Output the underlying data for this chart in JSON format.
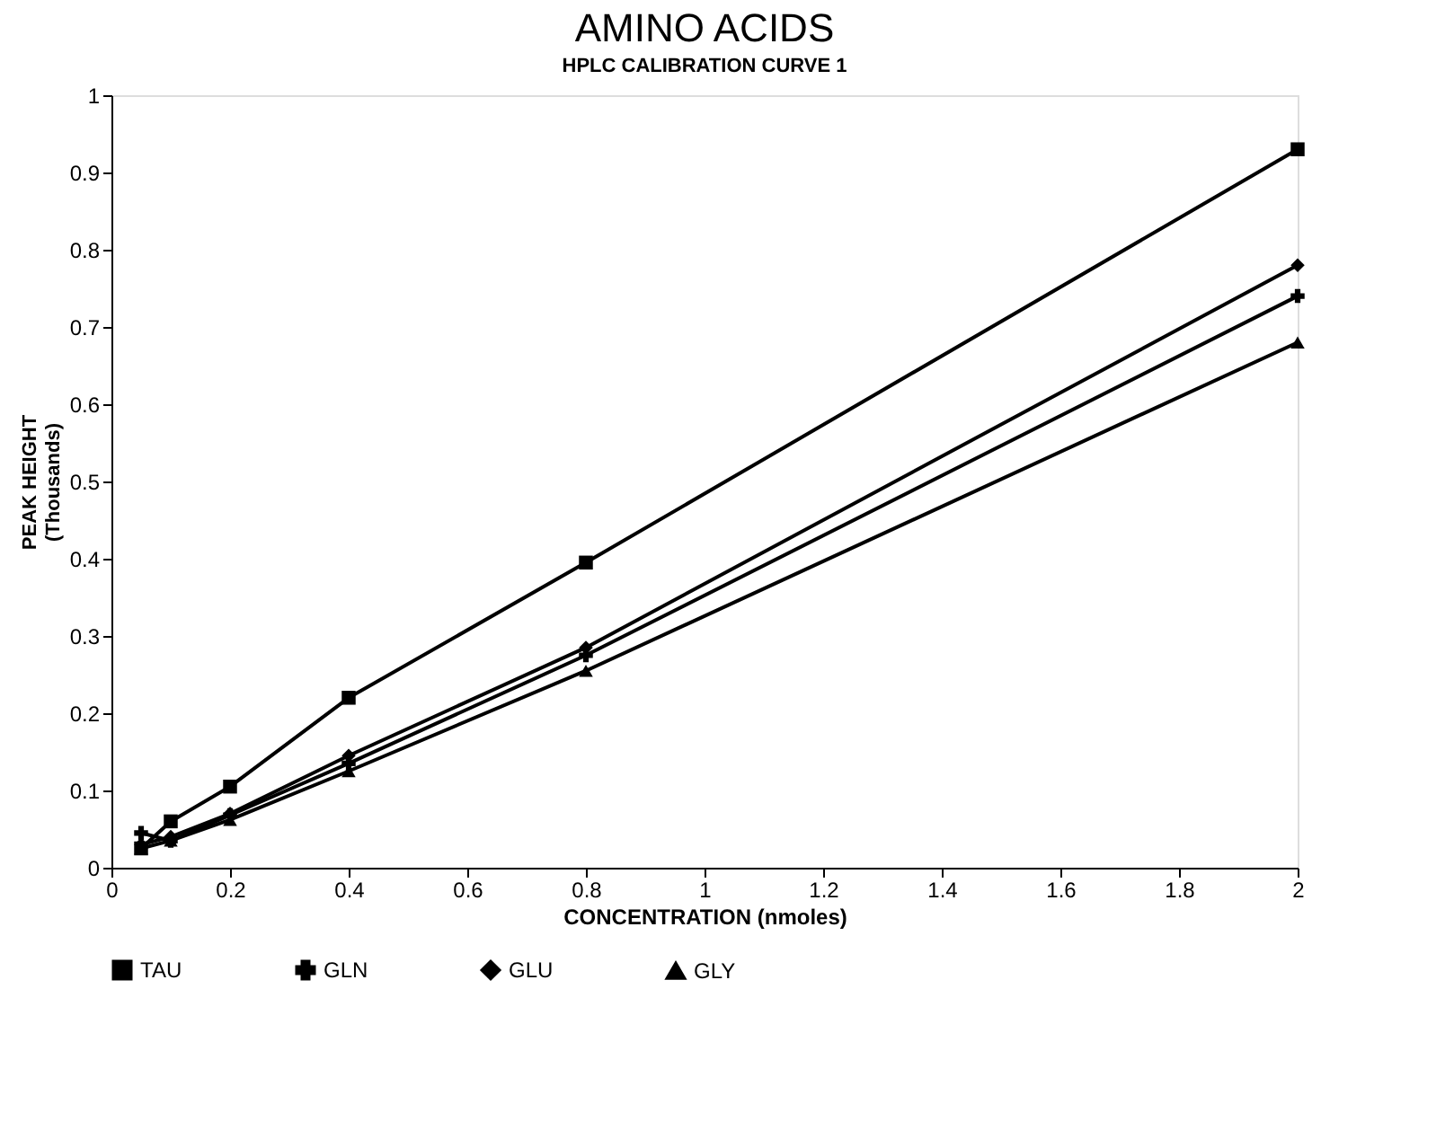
{
  "chart_data": {
    "type": "line",
    "title": "AMINO ACIDS",
    "subtitle": "HPLC CALIBRATION CURVE 1",
    "xlabel": "CONCENTRATION (nmoles)",
    "ylabel": "PEAK HEIGHT\n(Thousands)",
    "x": [
      0.05,
      0.1,
      0.2,
      0.4,
      0.8,
      2
    ],
    "series": [
      {
        "name": "TAU",
        "color": "#000000",
        "marker": "square",
        "values": [
          0.025,
          0.06,
          0.105,
          0.22,
          0.395,
          0.93
        ]
      },
      {
        "name": "GLN",
        "color": "#000000",
        "marker": "cross",
        "values": [
          0.045,
          0.035,
          0.068,
          0.135,
          0.275,
          0.74
        ]
      },
      {
        "name": "GLU",
        "color": "#000000",
        "marker": "diamond",
        "values": [
          0.03,
          0.04,
          0.07,
          0.145,
          0.285,
          0.78
        ]
      },
      {
        "name": "GLY",
        "color": "#000000",
        "marker": "triangle",
        "values": [
          0.025,
          0.035,
          0.062,
          0.125,
          0.255,
          0.68
        ]
      }
    ],
    "xlim": [
      0,
      2
    ],
    "xticks": [
      0,
      0.2,
      0.4,
      0.6,
      0.8,
      1,
      1.2,
      1.4,
      1.6,
      1.8,
      2
    ],
    "ylim": [
      0,
      1
    ],
    "yticks": [
      0,
      0.1,
      0.2,
      0.3,
      0.4,
      0.5,
      0.6,
      0.7,
      0.8,
      0.9,
      1
    ],
    "grid": false,
    "legend": "bottom",
    "line_style": "solid"
  }
}
